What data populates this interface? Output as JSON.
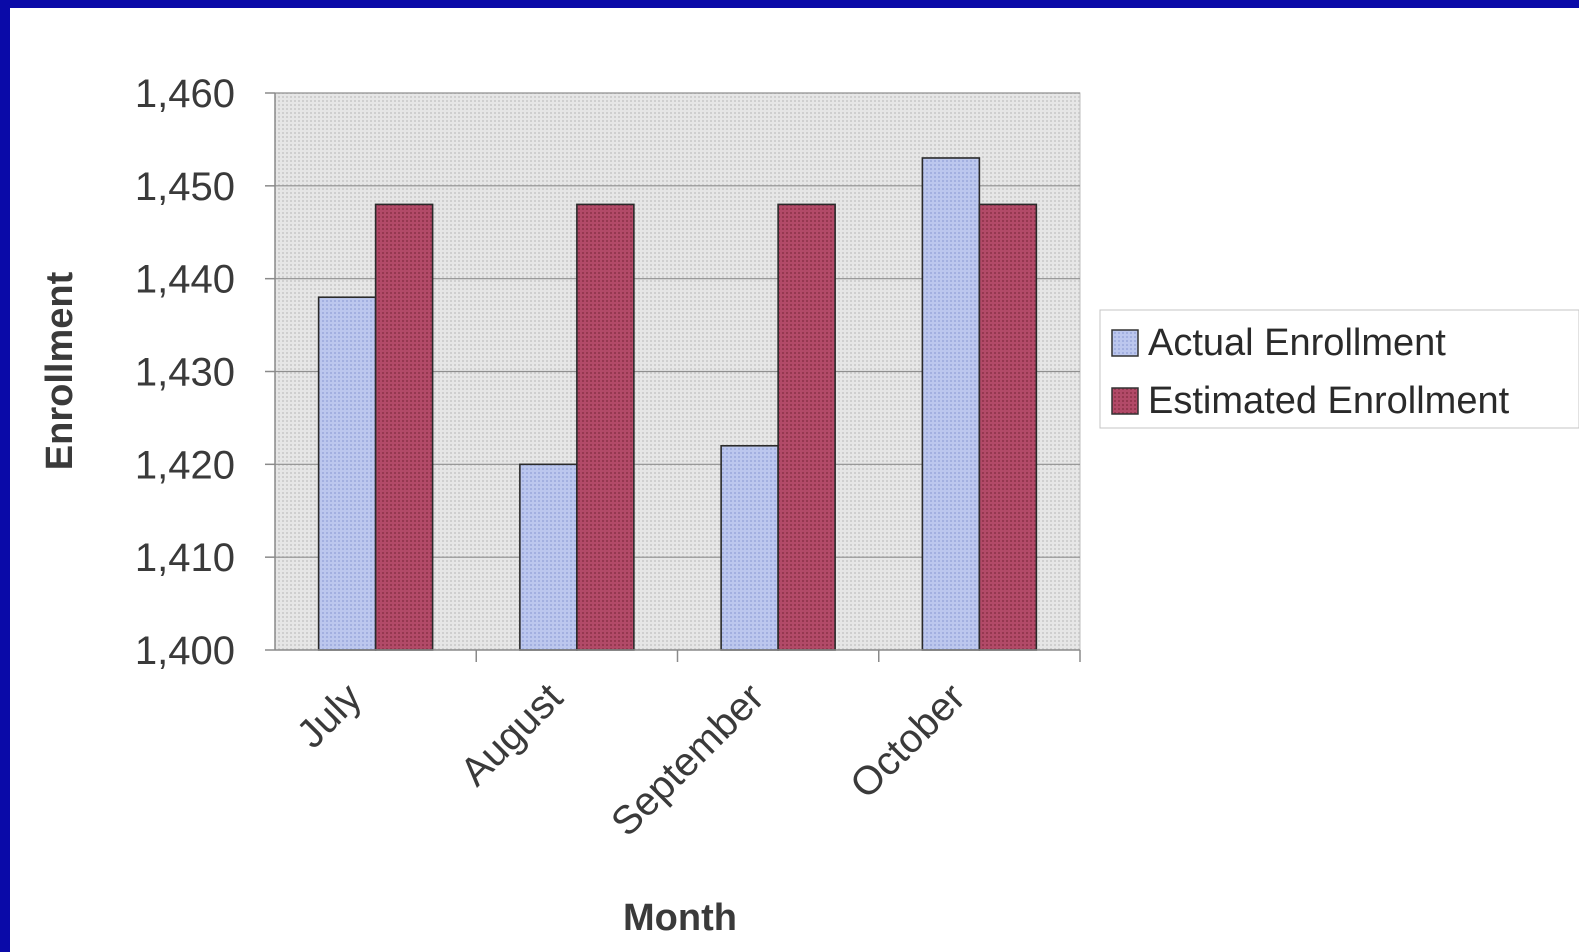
{
  "chart_data": {
    "type": "bar",
    "categories": [
      "July",
      "August",
      "September",
      "October"
    ],
    "series": [
      {
        "name": "Actual Enrollment",
        "values": [
          1438,
          1420,
          1422,
          1453
        ],
        "color": "#b8c4ec"
      },
      {
        "name": "Estimated Enrollment",
        "values": [
          1448,
          1448,
          1448,
          1448
        ],
        "color": "#b04a66"
      }
    ],
    "xlabel": "Month",
    "ylabel": "Enrollment",
    "ylim": [
      1400,
      1460
    ],
    "yticks": [
      1400,
      1410,
      1420,
      1430,
      1440,
      1450,
      1460
    ],
    "ytick_labels": [
      "1,400",
      "1,410",
      "1,420",
      "1,430",
      "1,440",
      "1,450",
      "1,460"
    ],
    "grid": true,
    "legend_position": "right"
  }
}
